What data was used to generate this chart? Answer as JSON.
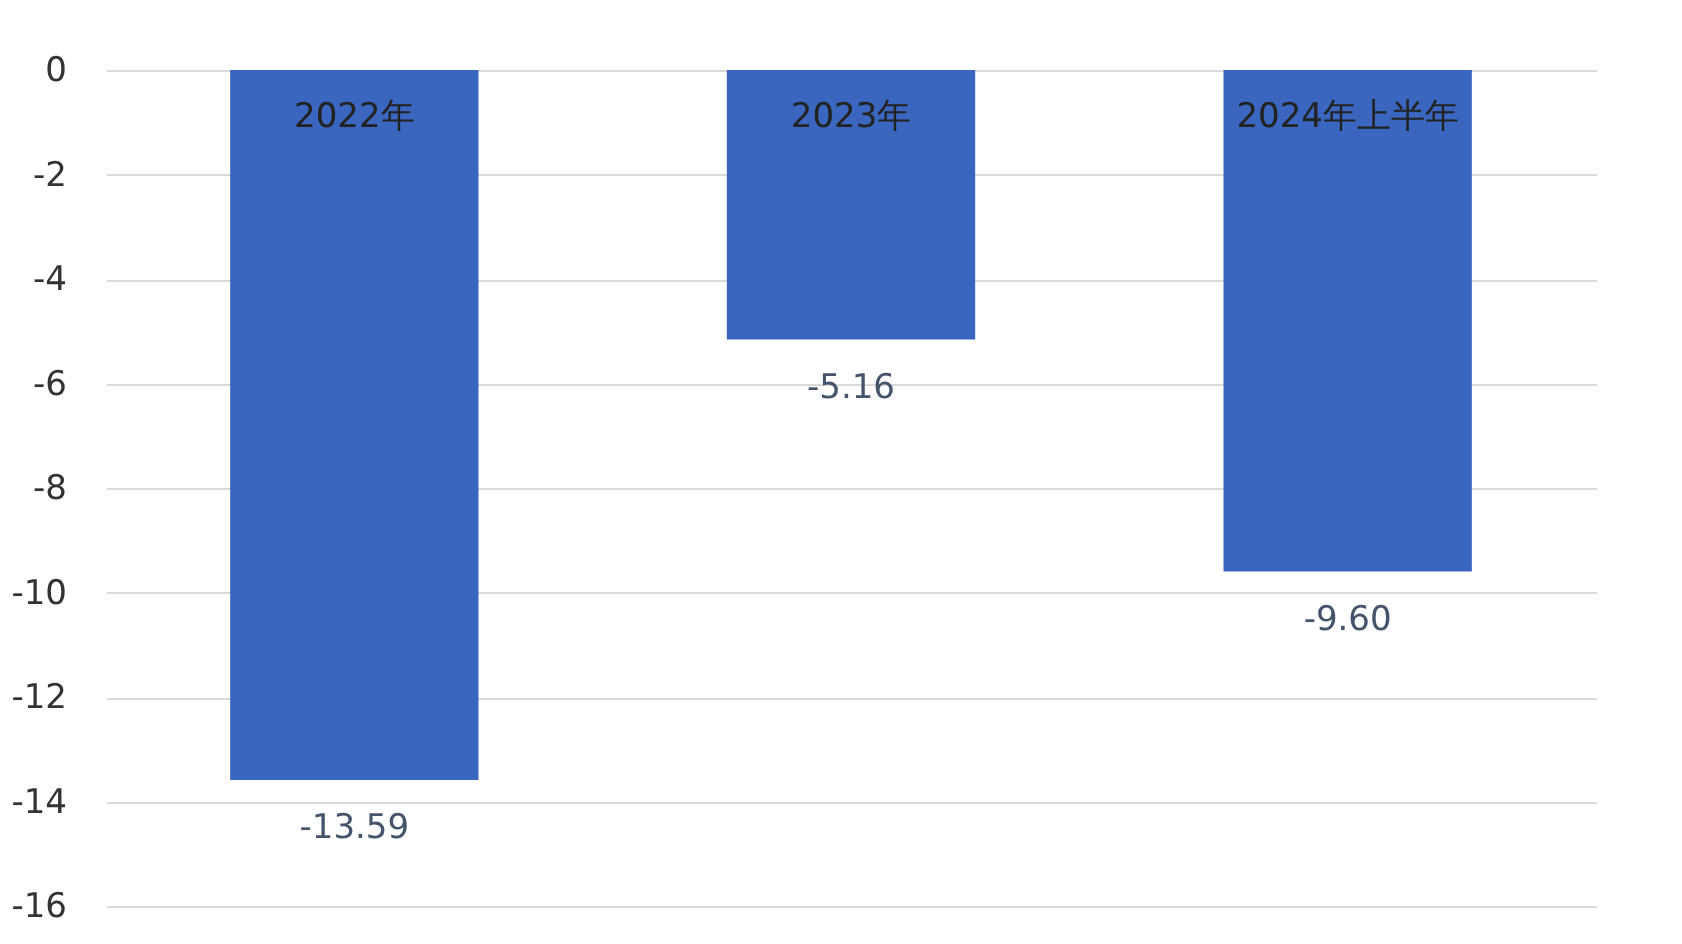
{
  "chart_data": {
    "type": "bar",
    "categories": [
      "2022年",
      "2023年",
      "2024年上半年"
    ],
    "values": [
      -13.59,
      -5.16,
      -9.6
    ],
    "value_labels": [
      "-13.59",
      "-5.16",
      "-9.60"
    ],
    "color": "#3a66c0",
    "ylim": [
      -16,
      0
    ],
    "yticks": [
      -16,
      -14,
      -12,
      -10,
      -8,
      -6,
      -4,
      -2,
      0
    ],
    "grid": "y"
  }
}
